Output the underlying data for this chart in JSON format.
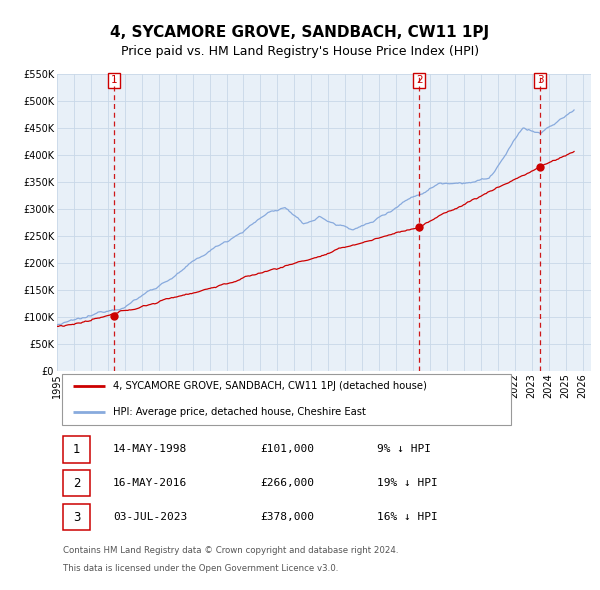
{
  "title": "4, SYCAMORE GROVE, SANDBACH, CW11 1PJ",
  "subtitle": "Price paid vs. HM Land Registry's House Price Index (HPI)",
  "ylim": [
    0,
    550000
  ],
  "yticks": [
    0,
    50000,
    100000,
    150000,
    200000,
    250000,
    300000,
    350000,
    400000,
    450000,
    500000,
    550000
  ],
  "ytick_labels": [
    "£0",
    "£50K",
    "£100K",
    "£150K",
    "£200K",
    "£250K",
    "£300K",
    "£350K",
    "£400K",
    "£450K",
    "£500K",
    "£550K"
  ],
  "xlim_start": 1995.0,
  "xlim_end": 2026.5,
  "xticks": [
    1995,
    1996,
    1997,
    1998,
    1999,
    2000,
    2001,
    2002,
    2003,
    2004,
    2005,
    2006,
    2007,
    2008,
    2009,
    2010,
    2011,
    2012,
    2013,
    2014,
    2015,
    2016,
    2017,
    2018,
    2019,
    2020,
    2021,
    2022,
    2023,
    2024,
    2025,
    2026
  ],
  "sale_color": "#cc0000",
  "hpi_color": "#88aadd",
  "chart_bg_color": "#e8f0f8",
  "sale_dot_color": "#cc0000",
  "vline_color": "#cc0000",
  "grid_color": "#c8d8e8",
  "background_color": "#ffffff",
  "sale_label": "4, SYCAMORE GROVE, SANDBACH, CW11 1PJ (detached house)",
  "hpi_label": "HPI: Average price, detached house, Cheshire East",
  "transactions": [
    {
      "num": 1,
      "date": "14-MAY-1998",
      "year": 1998.37,
      "price": 101000,
      "pct": "9%",
      "dir": "↓"
    },
    {
      "num": 2,
      "date": "16-MAY-2016",
      "year": 2016.37,
      "price": 266000,
      "pct": "19%",
      "dir": "↓"
    },
    {
      "num": 3,
      "date": "03-JUL-2023",
      "year": 2023.5,
      "price": 378000,
      "pct": "16%",
      "dir": "↓"
    }
  ],
  "footer1": "Contains HM Land Registry data © Crown copyright and database right 2024.",
  "footer2": "This data is licensed under the Open Government Licence v3.0.",
  "title_fontsize": 11,
  "subtitle_fontsize": 9,
  "tick_fontsize": 7
}
